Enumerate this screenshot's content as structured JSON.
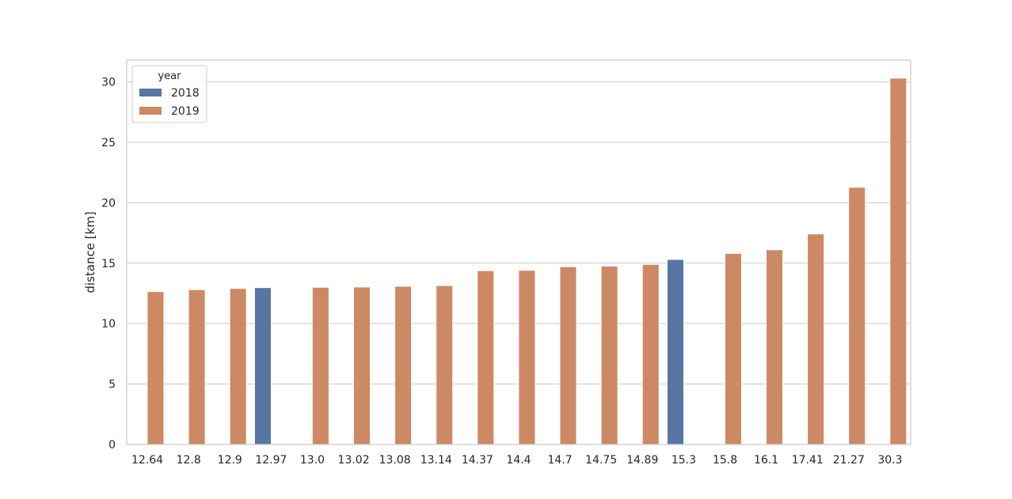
{
  "chart_data": {
    "type": "bar",
    "categories": [
      "12.64",
      "12.8",
      "12.9",
      "12.97",
      "13.0",
      "13.02",
      "13.08",
      "13.14",
      "14.37",
      "14.4",
      "14.7",
      "14.75",
      "14.89",
      "15.3",
      "15.8",
      "16.1",
      "17.41",
      "21.27",
      "30.3"
    ],
    "series": [
      {
        "name": "2018",
        "color": "#5875a4",
        "values": [
          null,
          null,
          null,
          12.97,
          null,
          null,
          null,
          null,
          null,
          null,
          null,
          null,
          null,
          15.3,
          null,
          null,
          null,
          null,
          null
        ]
      },
      {
        "name": "2019",
        "color": "#cc8963",
        "values": [
          12.64,
          12.8,
          12.9,
          null,
          13.0,
          13.02,
          13.08,
          13.14,
          14.37,
          14.4,
          14.7,
          14.75,
          14.89,
          null,
          15.8,
          16.1,
          17.41,
          21.27,
          30.3
        ]
      }
    ],
    "xlabel": "",
    "ylabel": "distance [km]",
    "ylim": [
      0,
      31.8
    ],
    "yticks": [
      0,
      5,
      10,
      15,
      20,
      25,
      30
    ],
    "grid": "horizontal",
    "legend": {
      "title": "year",
      "placement": "top-left"
    }
  }
}
